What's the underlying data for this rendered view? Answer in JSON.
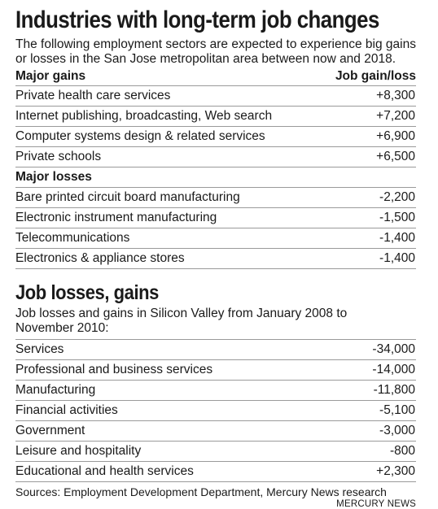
{
  "section1": {
    "title": "Industries with long-term job changes",
    "description": "The following employment sectors are expected to experience big gains or losses in the San Jose metropolitan area between now and 2018.",
    "gains_header": "Major gains",
    "value_header": "Job gain/loss",
    "gains": [
      {
        "label": "Private health care services",
        "value": "+8,300"
      },
      {
        "label": "Internet publishing, broadcasting, Web search",
        "value": "+7,200"
      },
      {
        "label": "Computer systems design & related services",
        "value": "+6,900"
      },
      {
        "label": "Private schools",
        "value": "+6,500"
      }
    ],
    "losses_header": "Major losses",
    "losses": [
      {
        "label": "Bare printed circuit board manufacturing",
        "value": "-2,200"
      },
      {
        "label": "Electronic instrument manufacturing",
        "value": "-1,500"
      },
      {
        "label": "Telecommunications",
        "value": "-1,400"
      },
      {
        "label": "Electronics & appliance stores",
        "value": "-1,400"
      }
    ]
  },
  "section2": {
    "title": "Job losses, gains",
    "description": "Job losses and gains in Silicon Valley from January 2008 to November 2010:",
    "rows": [
      {
        "label": "Services",
        "value": "-34,000"
      },
      {
        "label": "Professional and business services",
        "value": "-14,000"
      },
      {
        "label": "Manufacturing",
        "value": "-11,800"
      },
      {
        "label": "Financial activities",
        "value": "-5,100"
      },
      {
        "label": "Government",
        "value": "-3,000"
      },
      {
        "label": "Leisure and hospitality",
        "value": "-800"
      },
      {
        "label": "Educational and health services",
        "value": "+2,300"
      }
    ]
  },
  "footer": {
    "sources": "Sources: Employment Development Department, Mercury News research",
    "credit": "MERCURY NEWS"
  }
}
